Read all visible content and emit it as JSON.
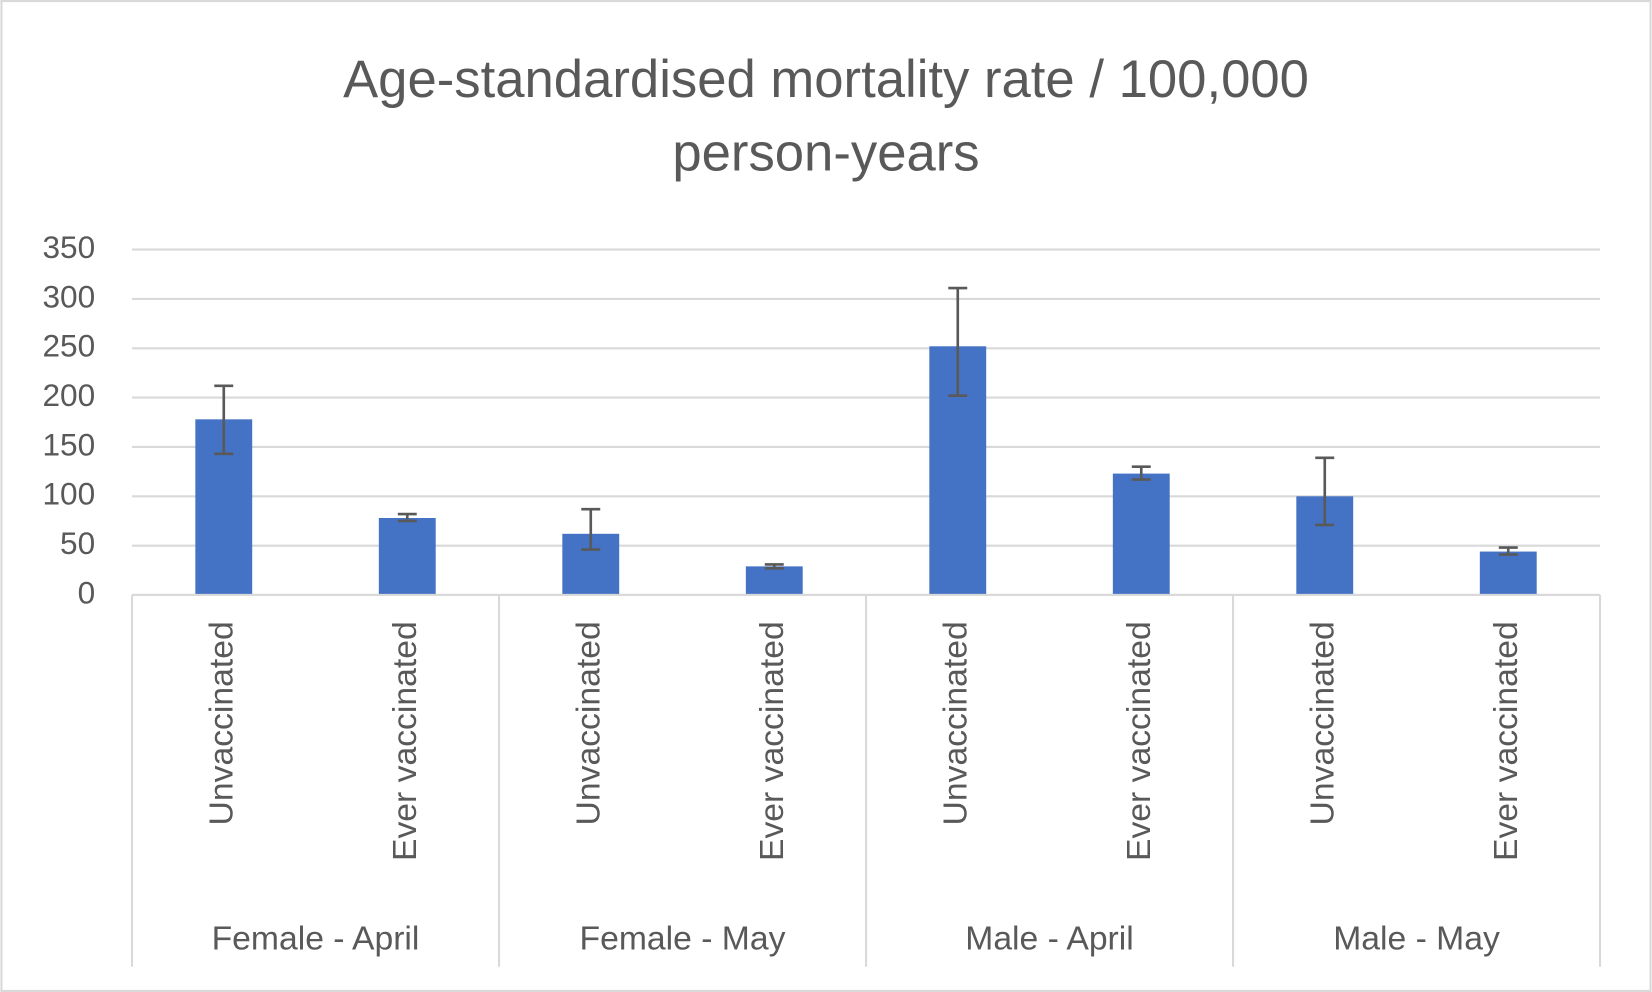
{
  "chart_data": {
    "type": "bar",
    "title": "Age-standardised mortality rate / 100,000 person-years",
    "categories": [
      "Unvaccinated",
      "Ever vaccinated",
      "Unvaccinated",
      "Ever vaccinated",
      "Unvaccinated",
      "Ever vaccinated",
      "Unvaccinated",
      "Ever vaccinated"
    ],
    "groups": [
      "Female - April",
      "Female - May",
      "Male - April",
      "Male - May"
    ],
    "values": [
      178,
      78,
      62,
      29,
      252,
      123,
      100,
      44
    ],
    "error_plus": [
      34,
      4,
      25,
      2,
      59,
      7,
      39,
      4
    ],
    "error_minus": [
      35,
      3,
      16,
      2,
      50,
      6,
      29,
      3
    ],
    "color": "#4472c4",
    "error_color": "#595959",
    "ylim": [
      0,
      350
    ],
    "yticks": [
      0,
      50,
      100,
      150,
      200,
      250,
      300,
      350
    ],
    "grid": true
  }
}
